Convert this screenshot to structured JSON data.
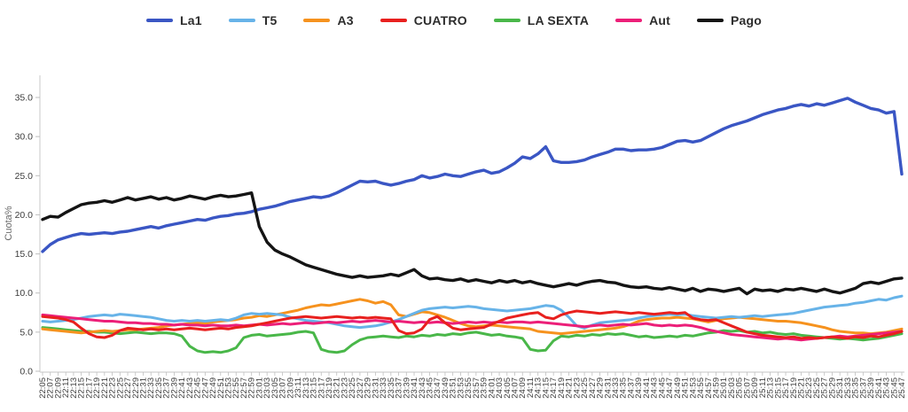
{
  "chart_data": {
    "type": "line",
    "title": "",
    "ylabel": "Cuota%",
    "ylim": [
      0,
      35
    ],
    "y_ticks": [
      0,
      5,
      10,
      15,
      20,
      25,
      30,
      35
    ],
    "grid": false,
    "legend_position": "top",
    "z_order": [
      4,
      2,
      1,
      5,
      3,
      0,
      6
    ],
    "x": [
      "22:05",
      "22:07",
      "22:09",
      "22:11",
      "22:13",
      "22:15",
      "22:17",
      "22:19",
      "22:21",
      "22:23",
      "22:25",
      "22:27",
      "22:29",
      "22:31",
      "22:33",
      "22:35",
      "22:37",
      "22:39",
      "22:41",
      "22:43",
      "22:45",
      "22:47",
      "22:49",
      "22:51",
      "22:53",
      "22:55",
      "22:57",
      "22:59",
      "23:01",
      "23:03",
      "23:05",
      "23:07",
      "23:09",
      "23:11",
      "23:13",
      "23:15",
      "23:17",
      "23:19",
      "23:21",
      "23:23",
      "23:25",
      "23:27",
      "23:29",
      "23:31",
      "23:33",
      "23:35",
      "23:37",
      "23:39",
      "23:41",
      "23:43",
      "23:45",
      "23:47",
      "23:49",
      "23:51",
      "23:53",
      "23:55",
      "23:57",
      "23:59",
      "24:01",
      "24:03",
      "24:05",
      "24:07",
      "24:09",
      "24:11",
      "24:13",
      "24:15",
      "24:17",
      "24:19",
      "24:21",
      "24:23",
      "24:25",
      "24:27",
      "24:29",
      "24:31",
      "24:33",
      "24:35",
      "24:37",
      "24:39",
      "24:41",
      "24:43",
      "24:45",
      "24:47",
      "24:49",
      "24:51",
      "24:53",
      "24:55",
      "24:57",
      "24:59",
      "25:01",
      "25:03",
      "25:05",
      "25:07",
      "25:09",
      "25:11",
      "25:13",
      "25:15",
      "25:17",
      "25:19",
      "25:21",
      "25:23",
      "25:25",
      "25:27",
      "25:29",
      "25:31",
      "25:33",
      "25:35",
      "25:37",
      "25:39",
      "25:41",
      "25:43",
      "25:45",
      "25:47"
    ],
    "series": [
      {
        "name": "La1",
        "color": "#3a56c4",
        "values": [
          15.3,
          16.2,
          16.8,
          17.1,
          17.4,
          17.6,
          17.5,
          17.6,
          17.7,
          17.6,
          17.8,
          17.9,
          18.1,
          18.3,
          18.5,
          18.3,
          18.6,
          18.8,
          19.0,
          19.2,
          19.4,
          19.3,
          19.6,
          19.8,
          19.9,
          20.1,
          20.2,
          20.4,
          20.7,
          20.9,
          21.1,
          21.4,
          21.7,
          21.9,
          22.1,
          22.3,
          22.2,
          22.4,
          22.8,
          23.3,
          23.8,
          24.3,
          24.2,
          24.3,
          24.0,
          23.8,
          24.0,
          24.3,
          24.5,
          25.0,
          24.7,
          24.9,
          25.2,
          25.0,
          24.9,
          25.2,
          25.5,
          25.7,
          25.3,
          25.5,
          26.0,
          26.6,
          27.4,
          27.2,
          27.8,
          28.7,
          26.9,
          26.7,
          26.7,
          26.8,
          27.0,
          27.4,
          27.7,
          28.0,
          28.4,
          28.4,
          28.2,
          28.3,
          28.3,
          28.4,
          28.6,
          29.0,
          29.4,
          29.5,
          29.3,
          29.5,
          30.0,
          30.5,
          31.0,
          31.4,
          31.7,
          32.0,
          32.4,
          32.8,
          33.1,
          33.4,
          33.6,
          33.9,
          34.1,
          33.9,
          34.2,
          34.0,
          34.3,
          34.6,
          34.9,
          34.4,
          34.0,
          33.6,
          33.4,
          33.0,
          33.2,
          25.2
        ]
      },
      {
        "name": "T5",
        "color": "#67b3e8",
        "values": [
          6.4,
          6.3,
          6.4,
          6.5,
          6.6,
          6.8,
          7.0,
          7.1,
          7.2,
          7.1,
          7.3,
          7.2,
          7.1,
          7.0,
          6.9,
          6.7,
          6.5,
          6.4,
          6.5,
          6.4,
          6.5,
          6.4,
          6.5,
          6.6,
          6.5,
          6.8,
          7.2,
          7.4,
          7.3,
          7.4,
          7.3,
          7.2,
          6.9,
          6.7,
          6.5,
          6.4,
          6.3,
          6.2,
          6.0,
          5.8,
          5.7,
          5.6,
          5.7,
          5.8,
          6.0,
          6.3,
          6.6,
          7.0,
          7.4,
          7.8,
          8.0,
          8.1,
          8.2,
          8.1,
          8.2,
          8.3,
          8.2,
          8.0,
          7.9,
          7.8,
          7.7,
          7.8,
          7.9,
          8.0,
          8.2,
          8.4,
          8.3,
          7.8,
          6.9,
          5.8,
          5.5,
          5.9,
          6.2,
          6.3,
          6.4,
          6.5,
          6.6,
          6.8,
          7.0,
          7.1,
          7.2,
          7.3,
          7.2,
          7.3,
          7.1,
          7.0,
          6.9,
          6.8,
          6.9,
          7.0,
          6.9,
          7.0,
          7.1,
          7.0,
          7.1,
          7.2,
          7.3,
          7.4,
          7.6,
          7.8,
          8.0,
          8.2,
          8.3,
          8.4,
          8.5,
          8.7,
          8.8,
          9.0,
          9.2,
          9.1,
          9.4,
          9.6
        ]
      },
      {
        "name": "A3",
        "color": "#f6921e",
        "values": [
          5.4,
          5.3,
          5.2,
          5.1,
          5.0,
          4.9,
          5.0,
          5.1,
          5.2,
          5.1,
          5.2,
          5.3,
          5.3,
          5.4,
          5.5,
          5.6,
          5.8,
          5.9,
          6.0,
          6.1,
          6.2,
          6.1,
          6.3,
          6.4,
          6.5,
          6.6,
          6.8,
          6.9,
          7.1,
          7.0,
          7.2,
          7.4,
          7.6,
          7.8,
          8.1,
          8.3,
          8.5,
          8.4,
          8.6,
          8.8,
          9.0,
          9.2,
          9.0,
          8.7,
          8.9,
          8.5,
          7.2,
          7.0,
          7.3,
          7.6,
          7.5,
          7.2,
          6.9,
          6.5,
          6.1,
          5.8,
          5.7,
          5.8,
          5.9,
          5.8,
          5.7,
          5.6,
          5.5,
          5.4,
          5.1,
          5.0,
          4.9,
          4.8,
          4.9,
          5.0,
          5.1,
          5.2,
          5.3,
          5.4,
          5.5,
          5.7,
          6.0,
          6.4,
          6.6,
          6.7,
          6.8,
          6.8,
          6.9,
          6.8,
          6.7,
          6.5,
          6.3,
          6.5,
          6.7,
          6.8,
          6.9,
          6.8,
          6.7,
          6.6,
          6.5,
          6.4,
          6.4,
          6.3,
          6.2,
          6.0,
          5.8,
          5.6,
          5.3,
          5.1,
          5.0,
          4.9,
          4.9,
          4.8,
          4.9,
          5.0,
          5.2,
          5.4
        ]
      },
      {
        "name": "CUATRO",
        "color": "#e8201e",
        "values": [
          7.0,
          6.9,
          6.8,
          6.6,
          6.3,
          5.5,
          4.8,
          4.4,
          4.3,
          4.6,
          5.2,
          5.5,
          5.4,
          5.3,
          5.4,
          5.3,
          5.4,
          5.3,
          5.4,
          5.5,
          5.4,
          5.3,
          5.4,
          5.5,
          5.4,
          5.6,
          5.7,
          5.8,
          6.0,
          6.2,
          6.4,
          6.6,
          6.8,
          6.9,
          7.0,
          6.9,
          6.8,
          6.9,
          7.0,
          6.9,
          6.8,
          6.9,
          6.8,
          6.9,
          6.8,
          6.7,
          5.2,
          4.8,
          4.9,
          5.4,
          6.6,
          7.0,
          6.2,
          5.5,
          5.3,
          5.4,
          5.5,
          5.6,
          6.0,
          6.4,
          6.8,
          7.0,
          7.2,
          7.4,
          7.5,
          6.9,
          6.7,
          7.2,
          7.5,
          7.7,
          7.6,
          7.5,
          7.4,
          7.5,
          7.6,
          7.5,
          7.4,
          7.5,
          7.4,
          7.3,
          7.4,
          7.5,
          7.4,
          7.5,
          6.8,
          6.6,
          6.5,
          6.6,
          6.2,
          5.8,
          5.4,
          5.0,
          4.8,
          4.6,
          4.5,
          4.4,
          4.3,
          4.4,
          4.2,
          4.3,
          4.2,
          4.3,
          4.4,
          4.3,
          4.2,
          4.4,
          4.3,
          4.5,
          4.4,
          4.6,
          4.8,
          5.1
        ]
      },
      {
        "name": "LA SEXTA",
        "color": "#49b749",
        "values": [
          5.6,
          5.5,
          5.4,
          5.3,
          5.2,
          5.1,
          5.1,
          5.0,
          5.0,
          4.9,
          4.8,
          4.9,
          5.0,
          4.9,
          4.8,
          4.9,
          4.9,
          4.8,
          4.5,
          3.2,
          2.6,
          2.4,
          2.5,
          2.4,
          2.6,
          3.0,
          4.3,
          4.6,
          4.7,
          4.5,
          4.6,
          4.7,
          4.8,
          5.0,
          5.1,
          4.9,
          2.8,
          2.5,
          2.4,
          2.6,
          3.4,
          4.0,
          4.3,
          4.4,
          4.5,
          4.4,
          4.3,
          4.5,
          4.4,
          4.6,
          4.5,
          4.7,
          4.6,
          4.8,
          4.7,
          4.9,
          5.0,
          4.8,
          4.6,
          4.7,
          4.5,
          4.4,
          4.2,
          2.8,
          2.6,
          2.7,
          3.9,
          4.5,
          4.4,
          4.6,
          4.5,
          4.7,
          4.6,
          4.8,
          4.7,
          4.8,
          4.6,
          4.4,
          4.5,
          4.3,
          4.4,
          4.5,
          4.4,
          4.6,
          4.5,
          4.7,
          4.9,
          5.0,
          5.2,
          5.1,
          5.2,
          5.0,
          5.1,
          4.9,
          5.0,
          4.8,
          4.7,
          4.8,
          4.6,
          4.5,
          4.4,
          4.3,
          4.2,
          4.1,
          4.2,
          4.1,
          4.0,
          4.1,
          4.2,
          4.4,
          4.6,
          4.8
        ]
      },
      {
        "name": "Aut",
        "color": "#ec1f78",
        "values": [
          7.2,
          7.1,
          7.0,
          6.9,
          6.8,
          6.7,
          6.6,
          6.5,
          6.4,
          6.4,
          6.3,
          6.2,
          6.2,
          6.1,
          6.1,
          6.0,
          6.0,
          5.9,
          6.0,
          5.9,
          5.9,
          5.8,
          5.9,
          5.8,
          5.8,
          5.9,
          5.8,
          5.9,
          6.0,
          5.9,
          6.0,
          6.1,
          6.0,
          6.1,
          6.2,
          6.1,
          6.2,
          6.3,
          6.2,
          6.3,
          6.4,
          6.3,
          6.4,
          6.5,
          6.4,
          6.3,
          6.4,
          6.3,
          6.2,
          6.3,
          6.2,
          6.3,
          6.2,
          6.1,
          6.2,
          6.3,
          6.2,
          6.3,
          6.2,
          6.3,
          6.2,
          6.3,
          6.3,
          6.2,
          6.3,
          6.2,
          6.1,
          6.0,
          5.9,
          5.8,
          5.7,
          5.8,
          5.9,
          5.8,
          5.9,
          6.0,
          5.9,
          6.0,
          6.1,
          5.9,
          5.8,
          5.9,
          5.8,
          5.9,
          5.8,
          5.6,
          5.3,
          5.1,
          4.9,
          4.7,
          4.6,
          4.5,
          4.4,
          4.3,
          4.2,
          4.1,
          4.2,
          4.1,
          4.0,
          4.1,
          4.2,
          4.3,
          4.4,
          4.5,
          4.4,
          4.5,
          4.6,
          4.7,
          4.8,
          4.9,
          5.0,
          5.1
        ]
      },
      {
        "name": "Pago",
        "color": "#141414",
        "values": [
          19.4,
          19.8,
          19.7,
          20.3,
          20.8,
          21.3,
          21.5,
          21.6,
          21.8,
          21.6,
          21.9,
          22.2,
          21.9,
          22.1,
          22.3,
          22.0,
          22.2,
          21.9,
          22.1,
          22.4,
          22.2,
          22.0,
          22.3,
          22.5,
          22.3,
          22.4,
          22.6,
          22.8,
          18.5,
          16.5,
          15.5,
          15.0,
          14.6,
          14.1,
          13.6,
          13.3,
          13.0,
          12.7,
          12.4,
          12.2,
          12.0,
          12.2,
          12.0,
          12.1,
          12.2,
          12.4,
          12.2,
          12.6,
          13.0,
          12.2,
          11.8,
          11.9,
          11.7,
          11.6,
          11.8,
          11.5,
          11.7,
          11.5,
          11.3,
          11.6,
          11.4,
          11.6,
          11.3,
          11.5,
          11.2,
          11.0,
          10.8,
          11.0,
          11.2,
          11.0,
          11.3,
          11.5,
          11.6,
          11.4,
          11.3,
          11.0,
          10.8,
          10.7,
          10.8,
          10.6,
          10.5,
          10.7,
          10.5,
          10.3,
          10.6,
          10.2,
          10.5,
          10.4,
          10.2,
          10.4,
          10.6,
          9.9,
          10.5,
          10.3,
          10.4,
          10.2,
          10.5,
          10.4,
          10.6,
          10.4,
          10.2,
          10.5,
          10.2,
          10.0,
          10.3,
          10.6,
          11.2,
          11.4,
          11.2,
          11.5,
          11.8,
          11.9
        ]
      }
    ],
    "style": {
      "axis_color": "#d9d9d9",
      "tick_color": "#bfbfbf",
      "tick_label_color": "#3c3c3c",
      "ylabel_color": "#6a6a6a",
      "line_width": 3.0,
      "emph_line_width": 3.4
    }
  }
}
